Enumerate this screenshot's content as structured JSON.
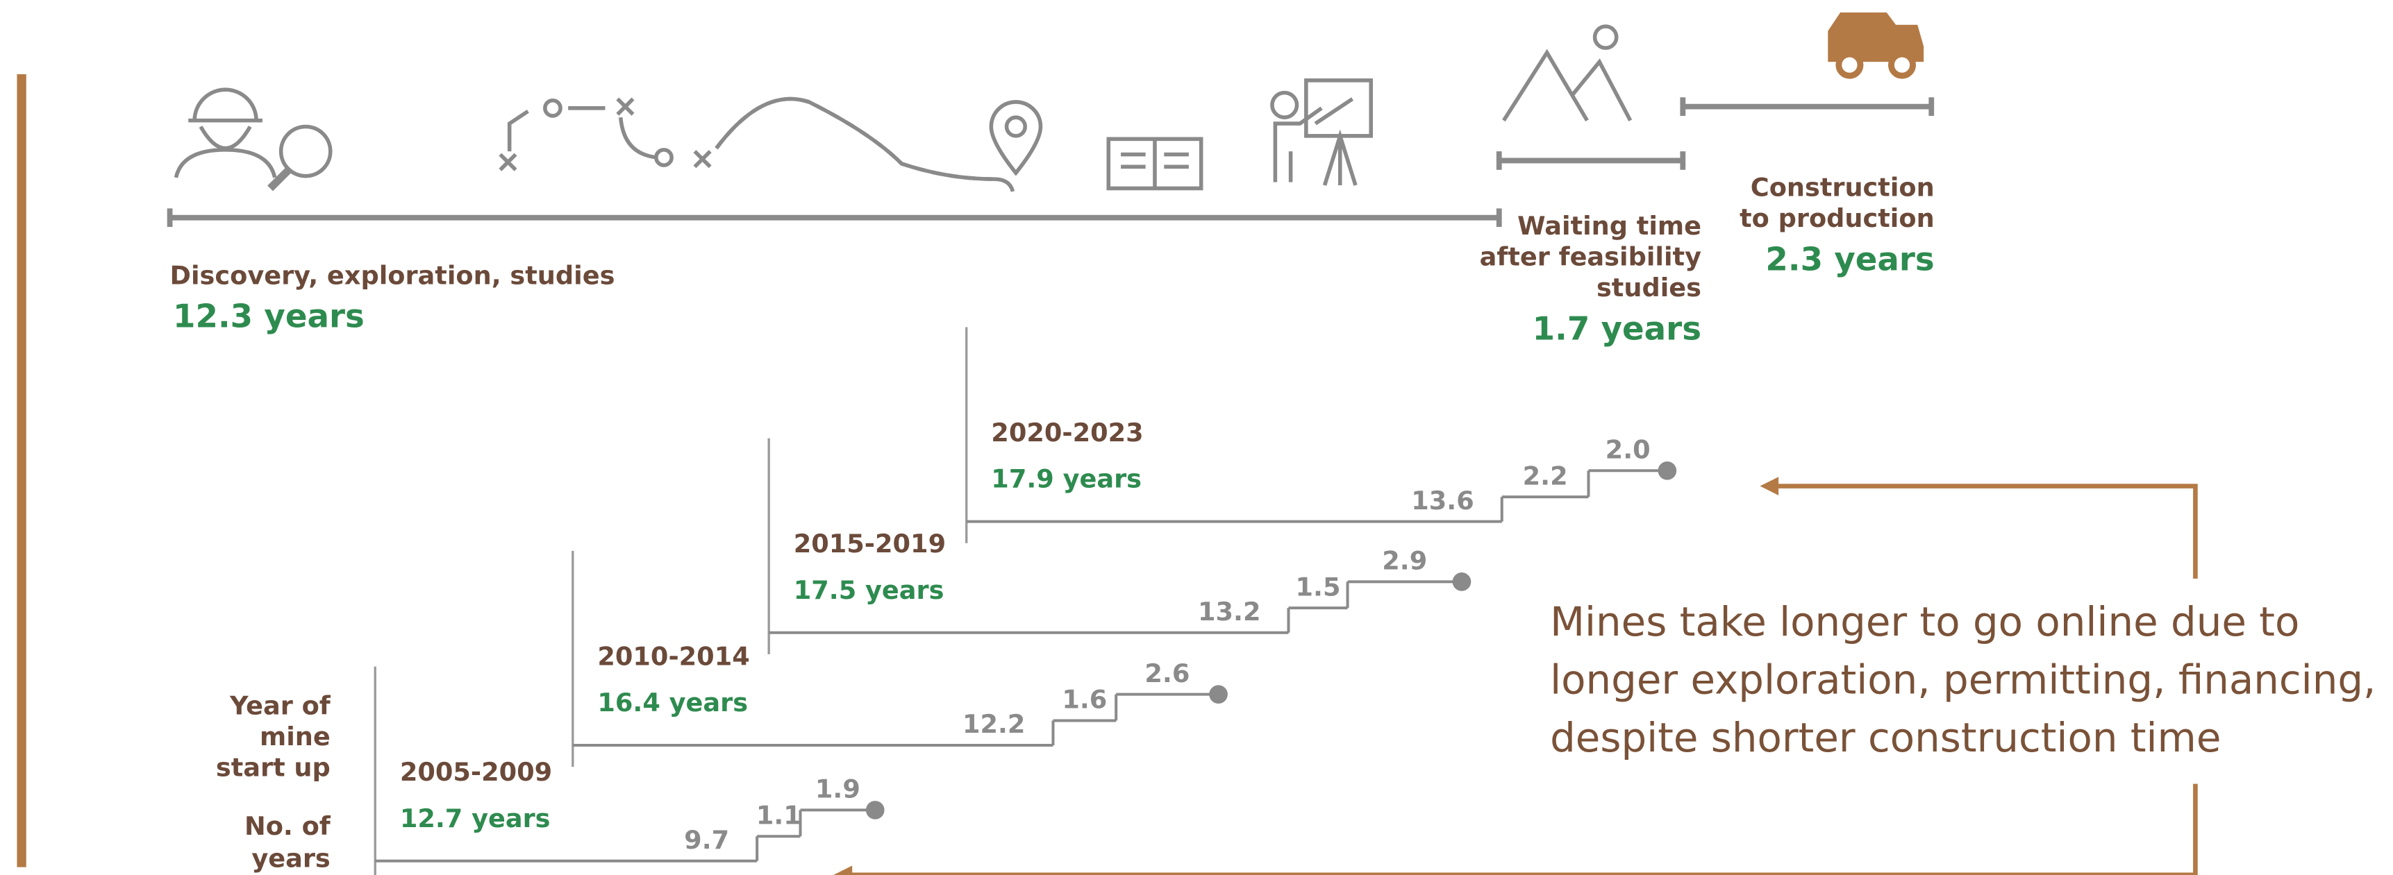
{
  "timeline": {
    "phases": [
      {
        "label_lines": [
          "Discovery, exploration, studies"
        ],
        "years": 12.3,
        "unit": "years"
      },
      {
        "label_lines": [
          "Waiting time",
          "after feasibility",
          "studies"
        ],
        "years": 1.7,
        "unit": "years"
      },
      {
        "label_lines": [
          "Construction",
          "to production"
        ],
        "years": 2.3,
        "unit": "years"
      }
    ]
  },
  "axis_labels": {
    "start_year": [
      "Year of",
      "mine",
      "start up"
    ],
    "years": [
      "No. of",
      "years"
    ]
  },
  "periods": [
    {
      "name": "2005-2009",
      "total": 12.7,
      "unit": "years",
      "phases": [
        9.7,
        1.1,
        1.9
      ]
    },
    {
      "name": "2010-2014",
      "total": 16.4,
      "unit": "years",
      "phases": [
        12.2,
        1.6,
        2.6
      ]
    },
    {
      "name": "2015-2019",
      "total": 17.5,
      "unit": "years",
      "phases": [
        13.2,
        1.5,
        2.9
      ]
    },
    {
      "name": "2020-2023",
      "total": 17.9,
      "unit": "years",
      "phases": [
        13.6,
        2.2,
        {
          "value": 2,
          "label": "2.0"
        }
      ]
    }
  ],
  "note": [
    "Mines take longer to go online due to",
    "longer exploration, permitting, financing,",
    "despite shorter construction time"
  ]
}
